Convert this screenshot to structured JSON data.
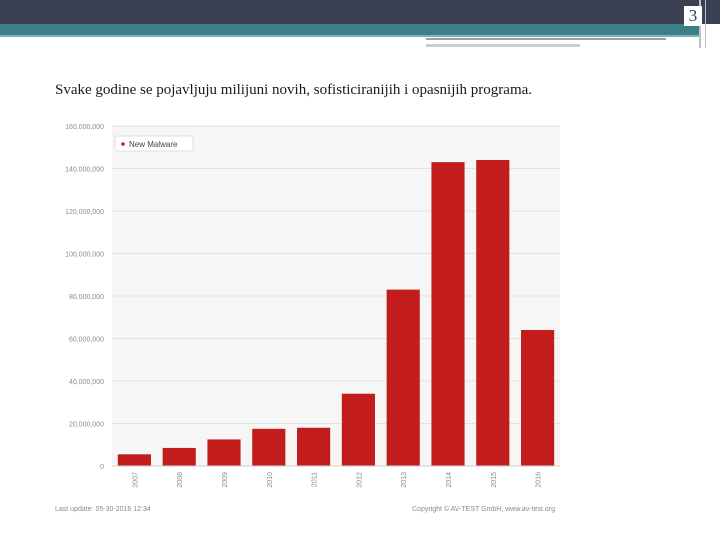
{
  "slide": {
    "number": "3",
    "text": "Svake godine se pojavljuju milijuni novih, sofisticiranijih i opasnijih programa."
  },
  "chart_data": {
    "type": "bar",
    "categories": [
      "2007",
      "2008",
      "2009",
      "2010",
      "2011",
      "2012",
      "2013",
      "2014",
      "2015",
      "2016"
    ],
    "series": [
      {
        "name": "New Malware",
        "values": [
          5500000,
          8500000,
          12500000,
          17500000,
          18000000,
          34000000,
          83000000,
          143000000,
          144000000,
          64000000
        ]
      }
    ],
    "ylim": [
      0,
      160000000
    ],
    "yticks": [
      "0",
      "20,000,000",
      "40,000,000",
      "60,000,000",
      "80,000,000",
      "100,000,000",
      "120,000,000",
      "140,000,000",
      "160,000,000"
    ],
    "footer_left": "Last update: 05-30-2016 12:34",
    "footer_right": "Copyright © AV-TEST GmbH, www.av-test.org",
    "bar_color": "#c21c1c",
    "legend_position": "top-left",
    "grid": true
  }
}
